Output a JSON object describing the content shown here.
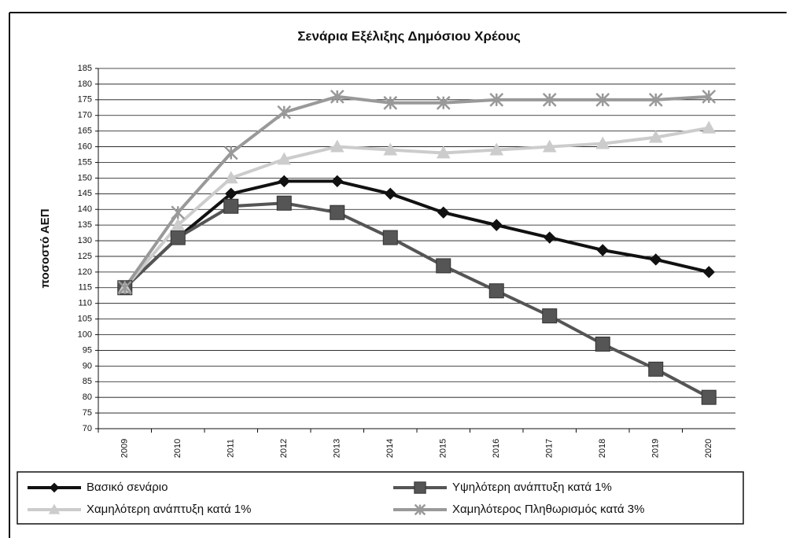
{
  "chart_data": {
    "type": "line",
    "title": "Σενάρια Εξέλιξης Δημόσιου Χρέους",
    "y_label": "ποσοστό ΑΕΠ",
    "categories": [
      "2009",
      "2010",
      "2011",
      "2012",
      "2013",
      "2014",
      "2015",
      "2016",
      "2017",
      "2018",
      "2019",
      "2020"
    ],
    "series": [
      {
        "name": "Βασικό σενάριο",
        "color": "#111111",
        "marker": "diamond",
        "values": [
          115,
          131,
          145,
          149,
          149,
          145,
          139,
          135,
          131,
          127,
          124,
          120
        ]
      },
      {
        "name": "Υψηλότερη ανάπτυξη κατά 1%",
        "color": "#555555",
        "marker": "square",
        "values": [
          115,
          131,
          141,
          142,
          139,
          131,
          122,
          114,
          106,
          97,
          89,
          80
        ]
      },
      {
        "name": "Χαμηλότερη ανάπτυξη κατά 1%",
        "color": "#cccccc",
        "marker": "triangle",
        "values": [
          115,
          135,
          150,
          156,
          160,
          159,
          158,
          159,
          160,
          161,
          163,
          166
        ]
      },
      {
        "name": "Χαμηλότερος Πληθωρισμός κατά 3%",
        "color": "#999999",
        "marker": "star",
        "values": [
          115,
          139,
          158,
          171,
          176,
          174,
          174,
          175,
          175,
          175,
          175,
          176
        ]
      }
    ],
    "ylim": [
      70,
      185
    ],
    "yticks": [
      70,
      75,
      80,
      85,
      90,
      95,
      100,
      105,
      110,
      115,
      120,
      125,
      130,
      135,
      140,
      145,
      150,
      155,
      160,
      165,
      170,
      175,
      180,
      185
    ],
    "grid": true
  }
}
